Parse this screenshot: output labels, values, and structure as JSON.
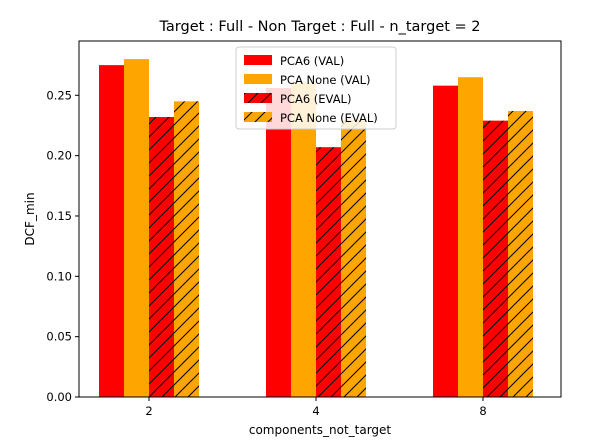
{
  "chart_data": {
    "type": "bar",
    "title": "Target : Full - Non Target : Full  - n_target = 2",
    "xlabel": "components_not_target",
    "ylabel": "DCF_min",
    "categories": [
      "2",
      "4",
      "8"
    ],
    "ylim": [
      0,
      0.295
    ],
    "yticks": [
      "0.00",
      "0.05",
      "0.10",
      "0.15",
      "0.20",
      "0.25"
    ],
    "grid": false,
    "legend_position": "top-center",
    "series": [
      {
        "name": "PCA6 (VAL)",
        "values": [
          0.275,
          0.256,
          0.258
        ],
        "color": "#ff0000",
        "hatch": false
      },
      {
        "name": "PCA None (VAL)",
        "values": [
          0.28,
          0.261,
          0.265
        ],
        "color": "#ffa500",
        "hatch": false
      },
      {
        "name": "PCA6 (EVAL)",
        "values": [
          0.232,
          0.207,
          0.229
        ],
        "color": "#ff0000",
        "hatch": true
      },
      {
        "name": "PCA None (EVAL)",
        "values": [
          0.245,
          0.23,
          0.237
        ],
        "color": "#ffa500",
        "hatch": true
      }
    ]
  }
}
